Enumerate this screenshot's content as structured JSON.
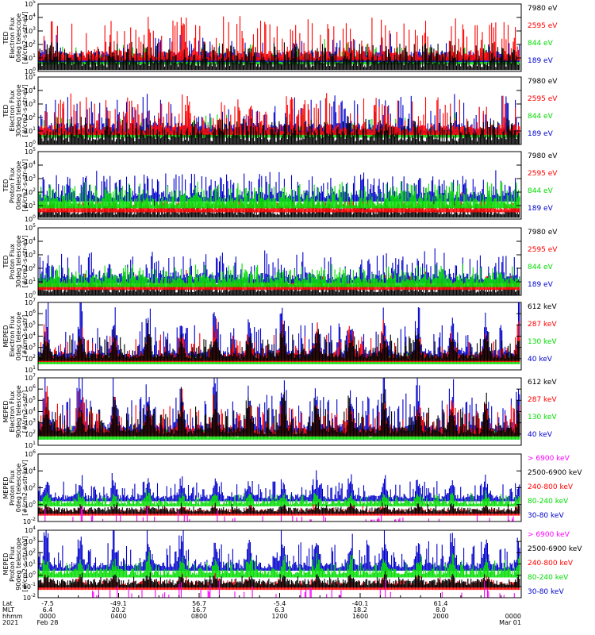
{
  "chart_data": {
    "type": "line",
    "panels": [
      {
        "ylabel": [
          "TED",
          "Electron Flux",
          "0deg telescope",
          "[#/cm2-s-str-eV]"
        ],
        "y_exp": [
          0,
          1,
          2,
          3,
          4,
          5
        ],
        "series": [
          {
            "name": "7980 eV",
            "color": "#000000"
          },
          {
            "name": "2595 eV",
            "color": "#ff0000"
          },
          {
            "name": "844 eV",
            "color": "#00dd00"
          },
          {
            "name": "189 eV",
            "color": "#0000cc"
          }
        ]
      },
      {
        "ylabel": [
          "TED",
          "Electron Flux",
          "30deg telescope",
          "[#/cm2-s-str-eV]"
        ],
        "y_exp": [
          0,
          1,
          2,
          3,
          4,
          5
        ],
        "series": [
          {
            "name": "7980 eV",
            "color": "#000000"
          },
          {
            "name": "2595 eV",
            "color": "#ff0000"
          },
          {
            "name": "844 eV",
            "color": "#00dd00"
          },
          {
            "name": "189 eV",
            "color": "#0000cc"
          }
        ]
      },
      {
        "ylabel": [
          "TED",
          "Proton Flux",
          "0deg telescope",
          "[#/cm2-s-str-eV]"
        ],
        "y_exp": [
          0,
          1,
          2,
          3,
          4,
          5
        ],
        "series": [
          {
            "name": "7980 eV",
            "color": "#000000"
          },
          {
            "name": "2595 eV",
            "color": "#ff0000"
          },
          {
            "name": "844 eV",
            "color": "#00dd00"
          },
          {
            "name": "189 eV",
            "color": "#0000cc"
          }
        ]
      },
      {
        "ylabel": [
          "TED",
          "Proton Flux",
          "30deg telescope",
          "[#/cm2-s-str-eV]"
        ],
        "y_exp": [
          0,
          1,
          2,
          3,
          4,
          5
        ],
        "series": [
          {
            "name": "7980 eV",
            "color": "#000000"
          },
          {
            "name": "2595 eV",
            "color": "#ff0000"
          },
          {
            "name": "844 eV",
            "color": "#00dd00"
          },
          {
            "name": "189 eV",
            "color": "#0000cc"
          }
        ]
      },
      {
        "ylabel": [
          "MEPED",
          "Electron Flux",
          "0deg telescope",
          "[#/cm2-s-str]"
        ],
        "y_exp": [
          1,
          2,
          3,
          4,
          5,
          6,
          7
        ],
        "series": [
          {
            "name": "612 keV",
            "color": "#000000"
          },
          {
            "name": "287 keV",
            "color": "#ff0000"
          },
          {
            "name": "130 keV",
            "color": "#00dd00"
          },
          {
            "name": "40 keV",
            "color": "#0000cc"
          }
        ]
      },
      {
        "ylabel": [
          "MEPED",
          "Electron Flux",
          "90deg telescope",
          "[#/cm2-s-str]"
        ],
        "y_exp": [
          1,
          2,
          3,
          4,
          5,
          6,
          7
        ],
        "series": [
          {
            "name": "612 keV",
            "color": "#000000"
          },
          {
            "name": "287 keV",
            "color": "#ff0000"
          },
          {
            "name": "130 keV",
            "color": "#00dd00"
          },
          {
            "name": "40 keV",
            "color": "#0000cc"
          }
        ]
      },
      {
        "ylabel": [
          "MEPED",
          "Proton Flux",
          "0deg telescope",
          "[#/cm2-s-str-keV]"
        ],
        "y_exp": [
          -2,
          0,
          2,
          4,
          6
        ],
        "series": [
          {
            "name": "> 6900 keV",
            "color": "#ff00ff"
          },
          {
            "name": "2500-6900 keV",
            "color": "#000000"
          },
          {
            "name": "240-800 keV",
            "color": "#ff0000"
          },
          {
            "name": "80-240 keV",
            "color": "#00dd00"
          },
          {
            "name": "30-80 keV",
            "color": "#0000cc"
          }
        ]
      },
      {
        "ylabel": [
          "MEPED",
          "Proton Flux",
          "90deg telescope",
          "[#/cm2-s-str-keV]"
        ],
        "y_exp": [
          -2,
          -1,
          0,
          1,
          2,
          3,
          4
        ],
        "series": [
          {
            "name": "> 6900 keV",
            "color": "#ff00ff"
          },
          {
            "name": "2500-6900 keV",
            "color": "#000000"
          },
          {
            "name": "240-800 keV",
            "color": "#ff0000"
          },
          {
            "name": "80-240 keV",
            "color": "#00dd00"
          },
          {
            "name": "30-80 keV",
            "color": "#0000cc"
          }
        ]
      }
    ],
    "x_axis": {
      "row_labels": [
        "Lat",
        "MLT",
        "hhmm",
        "2021"
      ],
      "ticks": [
        {
          "lat": "-7.5",
          "mlt": "6.4",
          "hhmm": "0000",
          "date": "Feb 28"
        },
        {
          "lat": "-49.1",
          "mlt": "20.2",
          "hhmm": "0400",
          "date": ""
        },
        {
          "lat": "56.7",
          "mlt": "16.7",
          "hhmm": "0800",
          "date": ""
        },
        {
          "lat": "-5.4",
          "mlt": "6.3",
          "hhmm": "1200",
          "date": ""
        },
        {
          "lat": "-40.1",
          "mlt": "18.2",
          "hhmm": "1600",
          "date": ""
        },
        {
          "lat": "61.4",
          "mlt": "8.0",
          "hhmm": "2000",
          "date": ""
        },
        {
          "lat": "",
          "mlt": "",
          "hhmm": "0000",
          "date": "Mar 01"
        }
      ]
    }
  }
}
